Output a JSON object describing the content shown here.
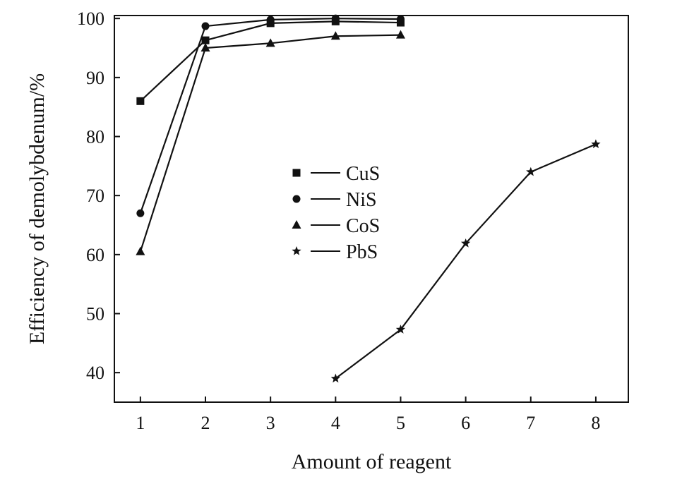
{
  "chart_data": {
    "type": "line",
    "xlabel": "Amount of reagent",
    "ylabel": "Efficiency of demolybdenum/%",
    "xlim": [
      0.6,
      8.5
    ],
    "ylim": [
      35,
      100.5
    ],
    "xticks": [
      1,
      2,
      3,
      4,
      5,
      6,
      7,
      8
    ],
    "yticks": [
      40,
      50,
      60,
      70,
      80,
      90,
      100
    ],
    "grid": false,
    "legend_position": "center",
    "series": [
      {
        "name": "CuS",
        "marker": "square",
        "x": [
          1,
          2,
          3,
          4,
          5
        ],
        "y": [
          86,
          96.3,
          99.2,
          99.5,
          99.3
        ]
      },
      {
        "name": "NiS",
        "marker": "circle",
        "x": [
          1,
          2,
          3,
          4,
          5
        ],
        "y": [
          67,
          98.7,
          99.8,
          100,
          99.9
        ]
      },
      {
        "name": "CoS",
        "marker": "triangle",
        "x": [
          1,
          2,
          3,
          4,
          5
        ],
        "y": [
          60.5,
          95,
          95.8,
          97,
          97.2
        ]
      },
      {
        "name": "PbS",
        "marker": "star",
        "x": [
          4,
          5,
          6,
          7,
          8
        ],
        "y": [
          39,
          47.3,
          61.9,
          74,
          78.7
        ]
      }
    ]
  }
}
